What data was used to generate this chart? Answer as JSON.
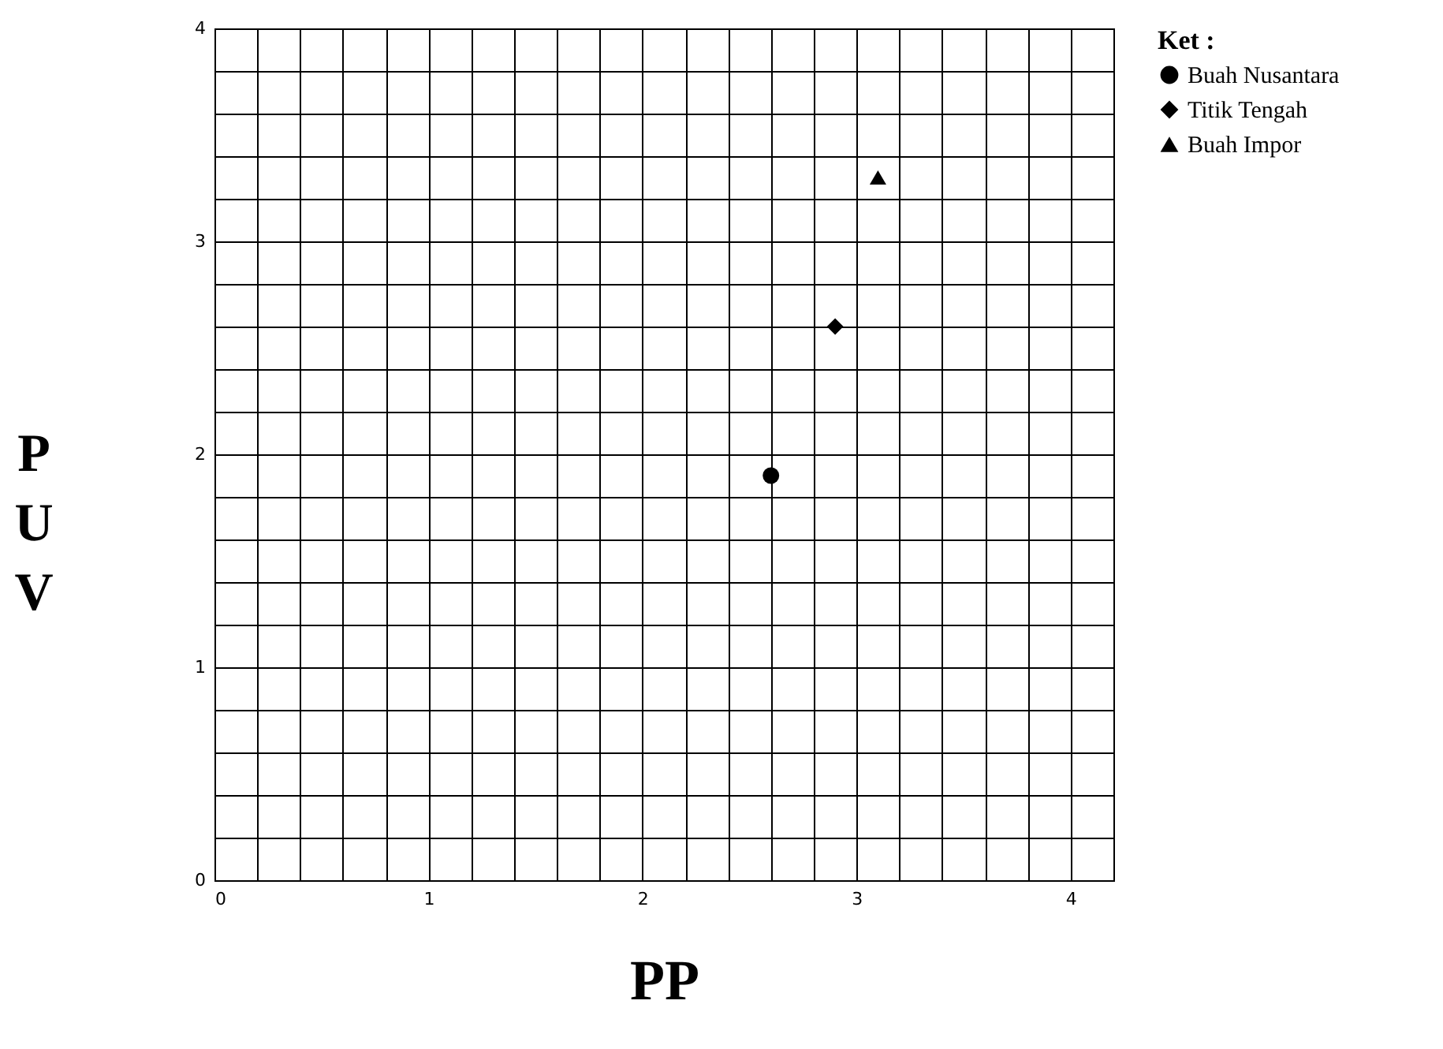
{
  "chart_data": {
    "type": "scatter",
    "xlabel": "PP",
    "ylabel": "PUV",
    "legend_title": "Ket :",
    "xlim": [
      0,
      4.2
    ],
    "ylim": [
      0,
      4
    ],
    "xticks": [
      0,
      {
        "value": 0.2,
        "label": null
      },
      {
        "value": 0.4,
        "label": null
      },
      {
        "value": 0.6,
        "label": null
      },
      {
        "value": 0.8,
        "label": null
      },
      1,
      {
        "value": 1.2,
        "label": null
      },
      {
        "value": 1.4,
        "label": null
      },
      {
        "value": 1.6,
        "label": null
      },
      {
        "value": 1.8,
        "label": null
      },
      2,
      {
        "value": 2.2,
        "label": null
      },
      {
        "value": 2.4,
        "label": null
      },
      {
        "value": 2.6,
        "label": null
      },
      {
        "value": 2.8,
        "label": null
      },
      3,
      {
        "value": 3.2,
        "label": null
      },
      {
        "value": 3.4,
        "label": null
      },
      {
        "value": 3.6,
        "label": null
      },
      {
        "value": 3.8,
        "label": null
      },
      4,
      {
        "value": 4.2,
        "label": null
      }
    ],
    "yticks": [
      0,
      {
        "value": 0.2,
        "label": null
      },
      {
        "value": 0.4,
        "label": null
      },
      {
        "value": 0.6,
        "label": null
      },
      {
        "value": 0.8,
        "label": null
      },
      1,
      {
        "value": 1.2,
        "label": null
      },
      {
        "value": 1.4,
        "label": null
      },
      {
        "value": 1.6,
        "label": null
      },
      {
        "value": 1.8,
        "label": null
      },
      2,
      {
        "value": 2.2,
        "label": null
      },
      {
        "value": 2.4,
        "label": null
      },
      {
        "value": 2.6,
        "label": null
      },
      {
        "value": 2.8,
        "label": null
      },
      3,
      {
        "value": 3.2,
        "label": null
      },
      {
        "value": 3.4,
        "label": null
      },
      {
        "value": 3.6,
        "label": null
      },
      {
        "value": 3.8,
        "label": null
      },
      4
    ],
    "grid": true,
    "legend": "right",
    "series": [
      {
        "name": "Buah Nusantara",
        "color": "#000000",
        "marker": "circle",
        "x": [
          2.6
        ],
        "values": [
          1.9
        ]
      },
      {
        "name": "Titik Tengah",
        "color": "#000000",
        "marker": "diamond",
        "x": [
          2.9
        ],
        "values": [
          2.6
        ]
      },
      {
        "name": "Buah Impor",
        "color": "#000000",
        "marker": "triangle",
        "x": [
          3.1
        ],
        "values": [
          3.3
        ]
      }
    ]
  }
}
